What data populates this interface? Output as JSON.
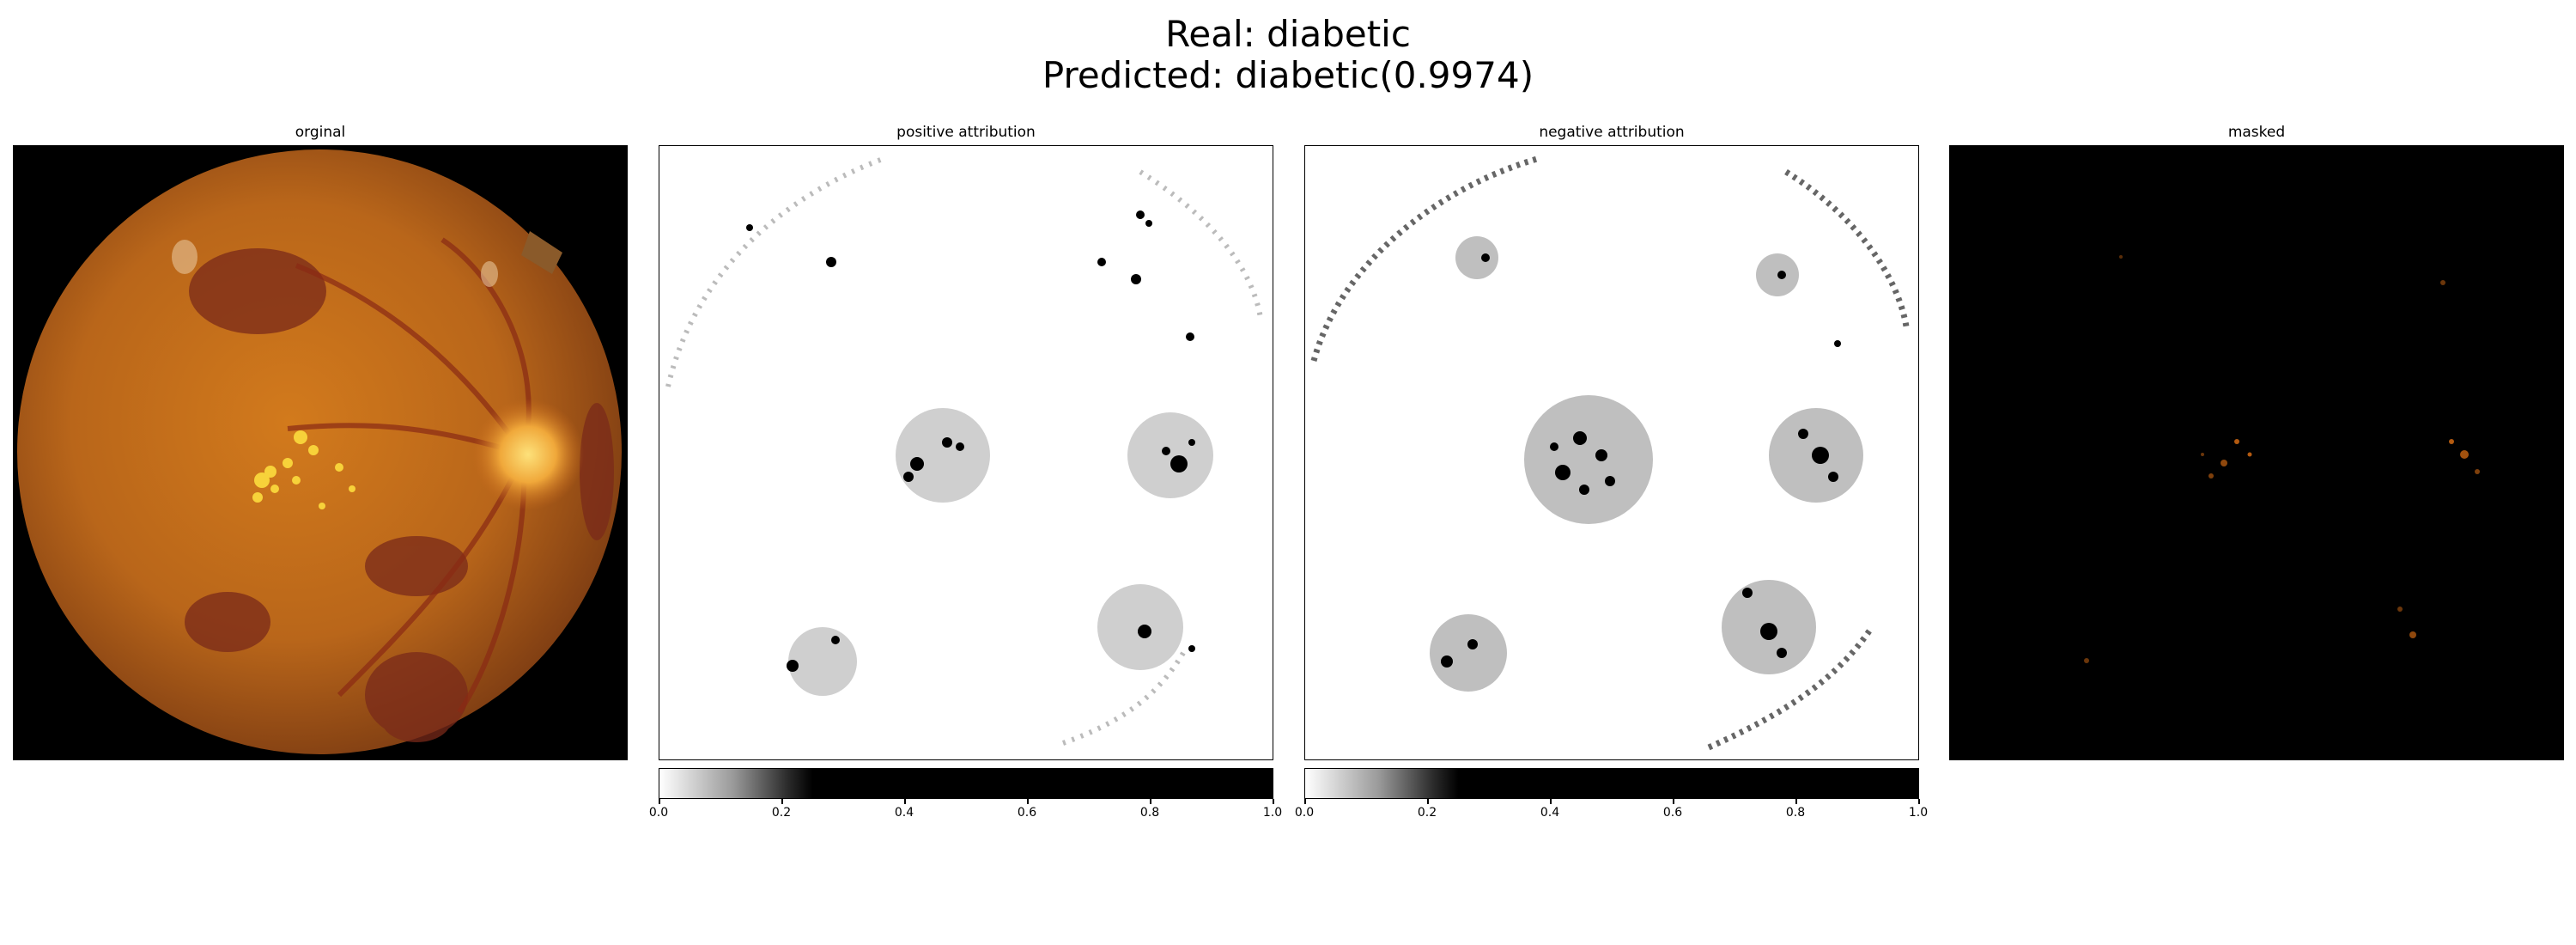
{
  "title": {
    "line1": "Real: diabetic",
    "line2": "Predicted: diabetic(0.9974)"
  },
  "panels": [
    {
      "title": "orginal"
    },
    {
      "title": "positive attribution"
    },
    {
      "title": "negative attribution"
    },
    {
      "title": "masked"
    }
  ],
  "colorbar": {
    "ticks": [
      "0.0",
      "0.2",
      "0.4",
      "0.6",
      "0.8",
      "1.0"
    ]
  },
  "colors": {
    "fundus": "#c0701a",
    "optic_disc": "#f2b23a",
    "exudate": "#f7d23a",
    "mask_highlight": "#b35a10"
  }
}
